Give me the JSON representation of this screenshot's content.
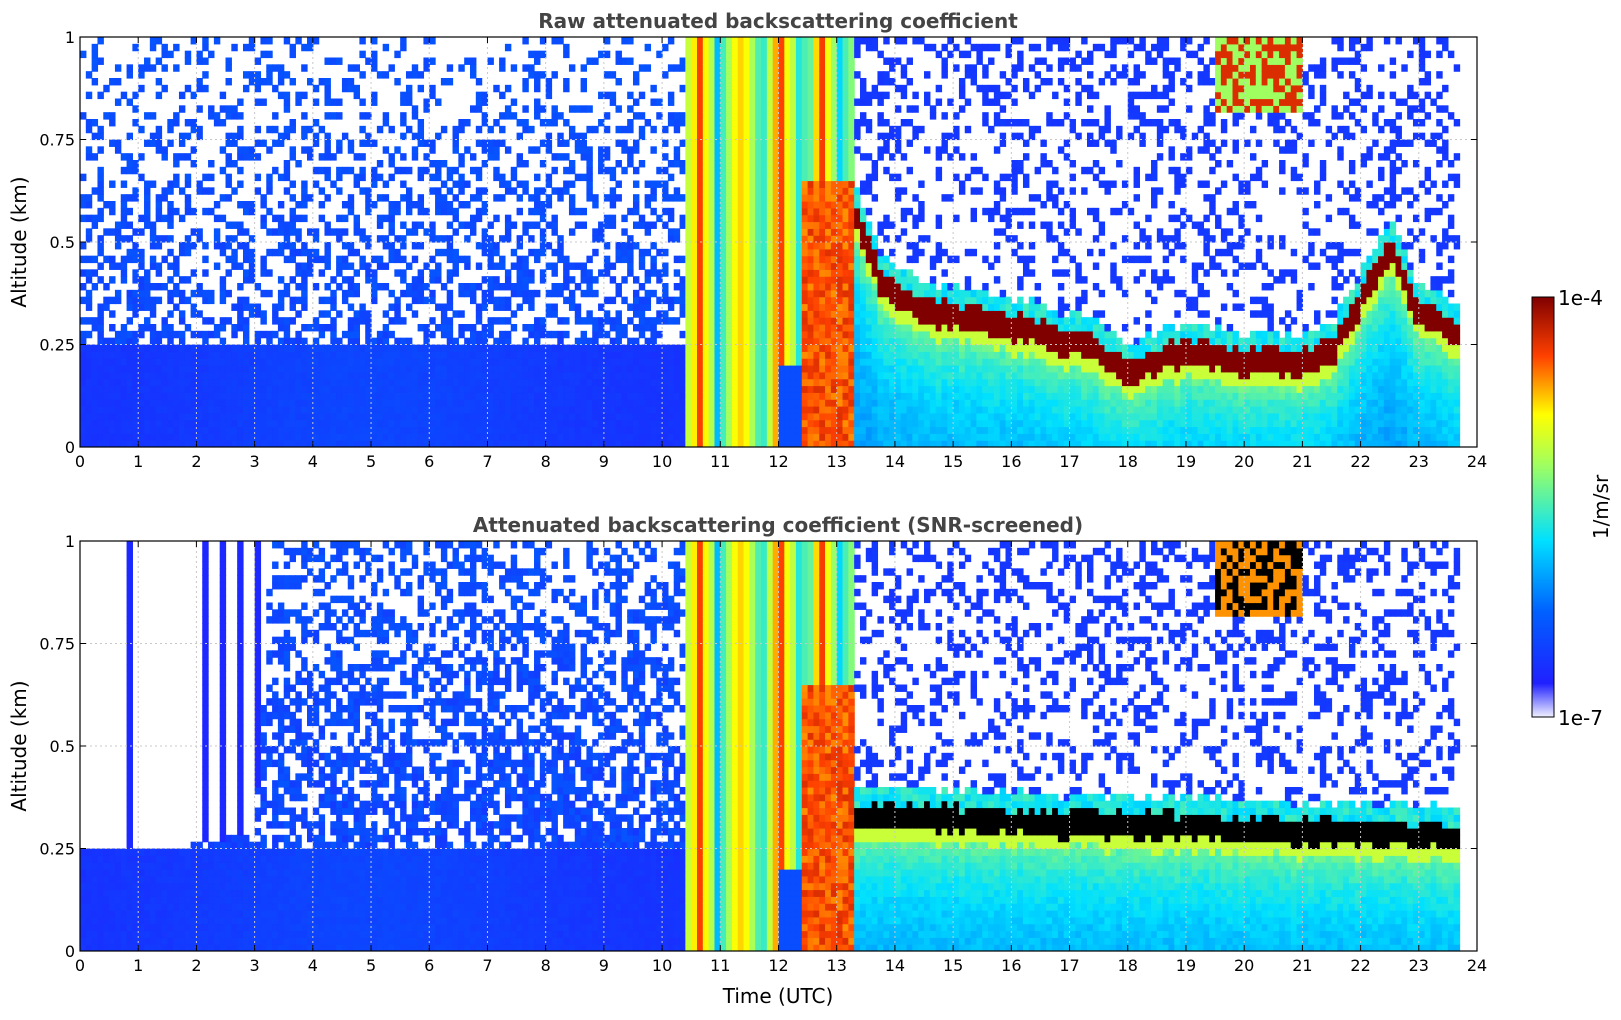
{
  "chart_data": [
    {
      "type": "heatmap",
      "title": "Raw attenuated backscattering coefficient",
      "xlabel": "",
      "ylabel": "Altitude (km)",
      "xlim": [
        0,
        24
      ],
      "ylim": [
        0,
        1
      ],
      "x_ticks": [
        "0",
        "1",
        "2",
        "3",
        "4",
        "5",
        "6",
        "7",
        "8",
        "9",
        "10",
        "11",
        "12",
        "13",
        "14",
        "15",
        "16",
        "17",
        "18",
        "19",
        "20",
        "21",
        "22",
        "23",
        "24"
      ],
      "y_ticks": [
        "0",
        "0.25",
        "0.5",
        "0.75",
        "1"
      ],
      "grid": true,
      "data_end_hour": 23.7,
      "features": {
        "background_noise_until_hour": 10.4,
        "fog_or_aerosol_band": [
          10.5,
          13.3
        ],
        "cloud_base_km": [
          [
            13.3,
            0.55
          ],
          [
            13.8,
            0.36
          ],
          [
            14.5,
            0.3
          ],
          [
            15.5,
            0.28
          ],
          [
            16.5,
            0.25
          ],
          [
            17.5,
            0.2
          ],
          [
            18.0,
            0.15
          ],
          [
            18.5,
            0.18
          ],
          [
            19.0,
            0.2
          ],
          [
            20.0,
            0.18
          ],
          [
            21.0,
            0.18
          ],
          [
            21.5,
            0.2
          ],
          [
            22.5,
            0.45
          ],
          [
            23.0,
            0.3
          ],
          [
            23.7,
            0.25
          ]
        ]
      }
    },
    {
      "type": "heatmap",
      "title": "Attenuated backscattering coefficient (SNR-screened)",
      "xlabel": "Time (UTC)",
      "ylabel": "Altitude (km)",
      "xlim": [
        0,
        24
      ],
      "ylim": [
        0,
        1
      ],
      "x_ticks": [
        "0",
        "1",
        "2",
        "3",
        "4",
        "5",
        "6",
        "7",
        "8",
        "9",
        "10",
        "11",
        "12",
        "13",
        "14",
        "15",
        "16",
        "17",
        "18",
        "19",
        "20",
        "21",
        "22",
        "23",
        "24"
      ],
      "y_ticks": [
        "0",
        "0.25",
        "0.5",
        "0.75",
        "1"
      ],
      "grid": true,
      "data_end_hour": 23.7,
      "features": {
        "screened_top_km": [
          [
            0,
            0.25
          ],
          [
            1.0,
            0.25
          ],
          [
            1.8,
            0.26
          ],
          [
            2.4,
            0.27
          ],
          [
            3.0,
            0.29
          ],
          [
            3.3,
            1.0
          ]
        ]
      }
    }
  ],
  "colorbar": {
    "label": "1/m/sr",
    "max_label": "1e-4",
    "min_label": "1e-7",
    "scale": "log",
    "colormap": [
      "#f0f0ff",
      "#0000ff",
      "#00ffff",
      "#ffff00",
      "#ff0000",
      "#800000"
    ]
  }
}
